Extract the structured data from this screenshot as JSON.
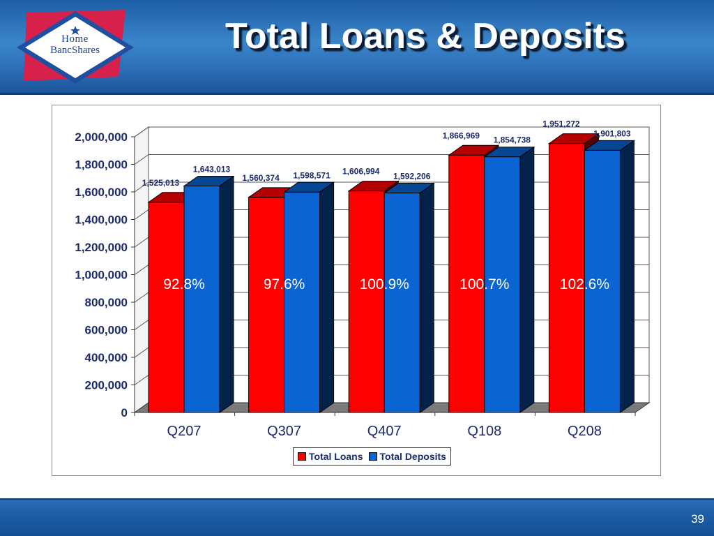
{
  "slide": {
    "title": "Total Loans & Deposits",
    "page_number": "39",
    "logo": {
      "line1": "Home",
      "line2": "BancShares"
    }
  },
  "colors": {
    "header_blue": "#2a6db5",
    "loans_red": "#ff0000",
    "deposits_blue": "#0060cc",
    "label_navy": "#1b2a6b"
  },
  "chart_data": {
    "type": "bar",
    "style": "3d-clustered",
    "categories": [
      "Q207",
      "Q307",
      "Q407",
      "Q108",
      "Q208"
    ],
    "series": [
      {
        "name": "Total Loans",
        "color": "#ff0000",
        "values": [
          1525013,
          1560374,
          1606994,
          1866969,
          1951272
        ],
        "labels": [
          "1,525,013",
          "1,560,374",
          "1,606,994",
          "1,866,969",
          "1,951,272"
        ]
      },
      {
        "name": "Total Deposits",
        "color": "#0a64d2",
        "values": [
          1643013,
          1598571,
          1592206,
          1854738,
          1901803
        ],
        "labels": [
          "1,643,013",
          "1,598,571",
          "1,592,206",
          "1,854,738",
          "1,901,803"
        ]
      }
    ],
    "ratio_labels": [
      "92.8%",
      "97.6%",
      "100.9%",
      "100.7%",
      "102.6%"
    ],
    "y_ticks": [
      "0",
      "200,000",
      "400,000",
      "600,000",
      "800,000",
      "1,000,000",
      "1,200,000",
      "1,400,000",
      "1,600,000",
      "1,800,000",
      "2,000,000"
    ],
    "ylim": [
      0,
      2000000
    ],
    "grid": true,
    "legend": "bottom-center"
  }
}
